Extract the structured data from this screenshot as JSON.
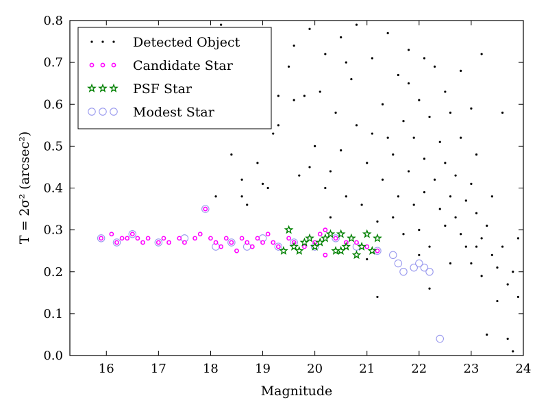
{
  "chart_data": {
    "type": "scatter",
    "xlabel": "Magnitude",
    "ylabel": "T = 2σ² (arcsec²)",
    "xlim": [
      15.3,
      24.0
    ],
    "ylim": [
      0.0,
      0.8
    ],
    "x_ticks": [
      "16",
      "17",
      "18",
      "19",
      "20",
      "21",
      "22",
      "23",
      "24"
    ],
    "y_ticks": [
      "0.0",
      "0.1",
      "0.2",
      "0.3",
      "0.4",
      "0.5",
      "0.6",
      "0.7",
      "0.8"
    ],
    "legend_position": "top-left",
    "series": [
      {
        "name": "Detected Object",
        "color": "#000000",
        "marker": "dot",
        "points": [
          [
            18.2,
            0.79
          ],
          [
            18.4,
            0.48
          ],
          [
            18.6,
            0.42
          ],
          [
            18.7,
            0.36
          ],
          [
            19.0,
            0.41
          ],
          [
            19.1,
            0.4
          ],
          [
            18.1,
            0.38
          ],
          [
            18.6,
            0.38
          ],
          [
            18.9,
            0.46
          ],
          [
            19.1,
            0.69
          ],
          [
            19.2,
            0.53
          ],
          [
            19.3,
            0.62
          ],
          [
            19.3,
            0.55
          ],
          [
            19.5,
            0.69
          ],
          [
            19.6,
            0.61
          ],
          [
            19.6,
            0.74
          ],
          [
            19.7,
            0.43
          ],
          [
            19.8,
            0.62
          ],
          [
            19.9,
            0.45
          ],
          [
            19.9,
            0.78
          ],
          [
            20.0,
            0.5
          ],
          [
            20.1,
            0.63
          ],
          [
            20.2,
            0.72
          ],
          [
            20.2,
            0.4
          ],
          [
            20.3,
            0.44
          ],
          [
            20.4,
            0.58
          ],
          [
            20.5,
            0.76
          ],
          [
            20.5,
            0.49
          ],
          [
            20.6,
            0.38
          ],
          [
            20.7,
            0.66
          ],
          [
            20.8,
            0.55
          ],
          [
            20.8,
            0.79
          ],
          [
            20.9,
            0.36
          ],
          [
            21.0,
            0.46
          ],
          [
            21.1,
            0.71
          ],
          [
            21.1,
            0.53
          ],
          [
            21.2,
            0.32
          ],
          [
            21.2,
            0.14
          ],
          [
            21.3,
            0.6
          ],
          [
            21.3,
            0.42
          ],
          [
            21.4,
            0.77
          ],
          [
            21.4,
            0.52
          ],
          [
            21.5,
            0.33
          ],
          [
            21.5,
            0.48
          ],
          [
            21.6,
            0.67
          ],
          [
            21.6,
            0.38
          ],
          [
            21.7,
            0.56
          ],
          [
            21.7,
            0.29
          ],
          [
            21.8,
            0.44
          ],
          [
            21.8,
            0.73
          ],
          [
            21.9,
            0.36
          ],
          [
            21.9,
            0.52
          ],
          [
            22.0,
            0.61
          ],
          [
            22.0,
            0.3
          ],
          [
            22.1,
            0.47
          ],
          [
            22.1,
            0.39
          ],
          [
            22.2,
            0.57
          ],
          [
            22.2,
            0.26
          ],
          [
            22.2,
            0.16
          ],
          [
            22.3,
            0.42
          ],
          [
            22.3,
            0.69
          ],
          [
            22.4,
            0.35
          ],
          [
            22.4,
            0.51
          ],
          [
            22.5,
            0.31
          ],
          [
            22.5,
            0.46
          ],
          [
            22.6,
            0.38
          ],
          [
            22.6,
            0.58
          ],
          [
            22.7,
            0.33
          ],
          [
            22.7,
            0.43
          ],
          [
            22.8,
            0.29
          ],
          [
            22.8,
            0.52
          ],
          [
            22.9,
            0.37
          ],
          [
            22.9,
            0.26
          ],
          [
            23.0,
            0.41
          ],
          [
            23.0,
            0.22
          ],
          [
            23.1,
            0.34
          ],
          [
            23.1,
            0.48
          ],
          [
            23.2,
            0.28
          ],
          [
            23.2,
            0.19
          ],
          [
            23.3,
            0.31
          ],
          [
            23.3,
            0.05
          ],
          [
            23.4,
            0.24
          ],
          [
            23.4,
            0.38
          ],
          [
            23.5,
            0.21
          ],
          [
            23.5,
            0.13
          ],
          [
            23.6,
            0.26
          ],
          [
            23.6,
            0.58
          ],
          [
            23.7,
            0.17
          ],
          [
            23.7,
            0.04
          ],
          [
            23.8,
            0.2
          ],
          [
            23.8,
            0.01
          ],
          [
            23.9,
            0.14
          ],
          [
            23.9,
            0.28
          ],
          [
            21.8,
            0.65
          ],
          [
            22.1,
            0.71
          ],
          [
            22.5,
            0.63
          ],
          [
            22.8,
            0.68
          ],
          [
            23.0,
            0.59
          ],
          [
            23.2,
            0.72
          ],
          [
            20.6,
            0.7
          ],
          [
            20.3,
            0.33
          ],
          [
            21.0,
            0.23
          ],
          [
            22.0,
            0.24
          ],
          [
            22.6,
            0.22
          ],
          [
            23.1,
            0.26
          ]
        ]
      },
      {
        "name": "Candidate Star",
        "color": "#ff00ff",
        "marker": "small-circle",
        "points": [
          [
            15.9,
            0.28
          ],
          [
            16.1,
            0.29
          ],
          [
            16.2,
            0.27
          ],
          [
            16.3,
            0.28
          ],
          [
            16.4,
            0.28
          ],
          [
            16.5,
            0.29
          ],
          [
            16.6,
            0.28
          ],
          [
            16.7,
            0.27
          ],
          [
            16.8,
            0.28
          ],
          [
            17.0,
            0.27
          ],
          [
            17.1,
            0.28
          ],
          [
            17.2,
            0.27
          ],
          [
            17.4,
            0.28
          ],
          [
            17.5,
            0.27
          ],
          [
            17.7,
            0.28
          ],
          [
            17.8,
            0.29
          ],
          [
            17.9,
            0.35
          ],
          [
            18.0,
            0.28
          ],
          [
            18.1,
            0.27
          ],
          [
            18.2,
            0.26
          ],
          [
            18.3,
            0.28
          ],
          [
            18.4,
            0.27
          ],
          [
            18.5,
            0.25
          ],
          [
            18.6,
            0.28
          ],
          [
            18.7,
            0.27
          ],
          [
            18.8,
            0.26
          ],
          [
            18.9,
            0.28
          ],
          [
            19.0,
            0.27
          ],
          [
            19.1,
            0.29
          ],
          [
            19.2,
            0.27
          ],
          [
            19.3,
            0.26
          ],
          [
            19.5,
            0.28
          ],
          [
            19.6,
            0.27
          ],
          [
            19.8,
            0.26
          ],
          [
            19.9,
            0.28
          ],
          [
            20.0,
            0.27
          ],
          [
            20.1,
            0.29
          ],
          [
            20.2,
            0.24
          ],
          [
            20.2,
            0.3
          ],
          [
            20.4,
            0.28
          ],
          [
            20.6,
            0.27
          ],
          [
            20.8,
            0.27
          ],
          [
            21.0,
            0.26
          ],
          [
            21.2,
            0.25
          ]
        ]
      },
      {
        "name": "PSF Star",
        "color": "#008000",
        "marker": "star",
        "points": [
          [
            19.4,
            0.25
          ],
          [
            19.5,
            0.3
          ],
          [
            19.6,
            0.26
          ],
          [
            19.7,
            0.25
          ],
          [
            19.8,
            0.27
          ],
          [
            19.9,
            0.28
          ],
          [
            20.0,
            0.26
          ],
          [
            20.1,
            0.27
          ],
          [
            20.3,
            0.29
          ],
          [
            20.4,
            0.25
          ],
          [
            20.5,
            0.29
          ],
          [
            20.6,
            0.26
          ],
          [
            20.7,
            0.28
          ],
          [
            20.8,
            0.24
          ],
          [
            20.9,
            0.26
          ],
          [
            21.0,
            0.29
          ],
          [
            21.1,
            0.25
          ],
          [
            21.2,
            0.28
          ],
          [
            20.2,
            0.28
          ],
          [
            20.5,
            0.25
          ]
        ]
      },
      {
        "name": "Modest Star",
        "color": "#9999ee",
        "marker": "open-circle",
        "points": [
          [
            15.9,
            0.28
          ],
          [
            16.2,
            0.27
          ],
          [
            16.5,
            0.29
          ],
          [
            17.0,
            0.27
          ],
          [
            17.5,
            0.28
          ],
          [
            17.9,
            0.35
          ],
          [
            18.1,
            0.26
          ],
          [
            18.4,
            0.27
          ],
          [
            18.7,
            0.26
          ],
          [
            19.0,
            0.28
          ],
          [
            19.3,
            0.26
          ],
          [
            19.6,
            0.27
          ],
          [
            20.0,
            0.26
          ],
          [
            20.4,
            0.28
          ],
          [
            20.8,
            0.26
          ],
          [
            21.2,
            0.25
          ],
          [
            21.5,
            0.24
          ],
          [
            21.6,
            0.22
          ],
          [
            21.7,
            0.2
          ],
          [
            21.9,
            0.21
          ],
          [
            22.0,
            0.22
          ],
          [
            22.1,
            0.21
          ],
          [
            22.2,
            0.2
          ],
          [
            22.4,
            0.04
          ]
        ]
      }
    ]
  }
}
